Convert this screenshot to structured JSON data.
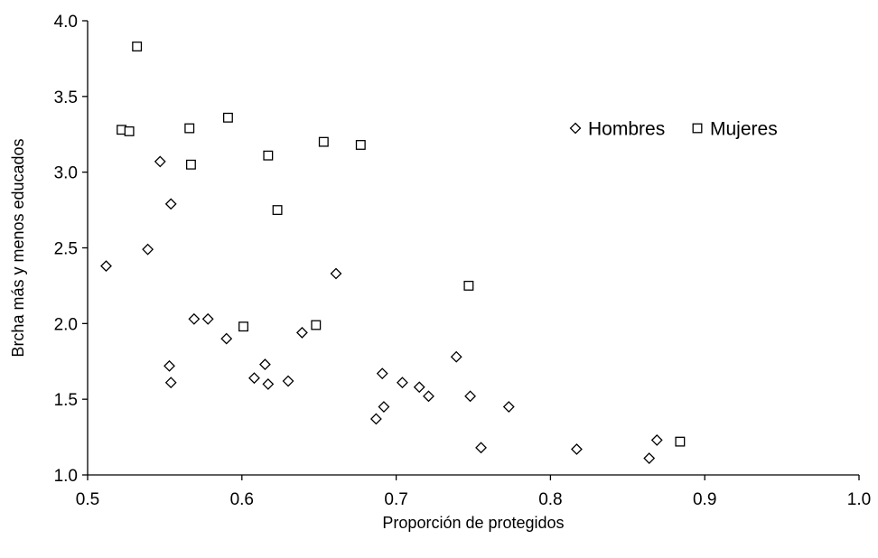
{
  "chart_data": {
    "type": "scatter",
    "title": "",
    "xlabel": "Proporción de protegidos",
    "ylabel": "Brcha más y menos educados",
    "xlim": [
      0.5,
      1.0
    ],
    "ylim": [
      1.0,
      4.0
    ],
    "x_ticks": [
      "0.5",
      "0.6",
      "0.7",
      "0.8",
      "0.9",
      "1.0"
    ],
    "y_ticks": [
      "1.0",
      "1.5",
      "2.0",
      "2.5",
      "3.0",
      "3.5",
      "4.0"
    ],
    "grid": false,
    "legend_position": "top-right",
    "series": [
      {
        "name": "Hombres",
        "marker": "diamond",
        "color": "#000000",
        "points": [
          {
            "x": 0.512,
            "y": 2.38
          },
          {
            "x": 0.539,
            "y": 2.49
          },
          {
            "x": 0.547,
            "y": 3.07
          },
          {
            "x": 0.553,
            "y": 1.72
          },
          {
            "x": 0.554,
            "y": 1.61
          },
          {
            "x": 0.554,
            "y": 2.79
          },
          {
            "x": 0.569,
            "y": 2.03
          },
          {
            "x": 0.578,
            "y": 2.03
          },
          {
            "x": 0.59,
            "y": 1.9
          },
          {
            "x": 0.608,
            "y": 1.64
          },
          {
            "x": 0.615,
            "y": 1.73
          },
          {
            "x": 0.617,
            "y": 1.6
          },
          {
            "x": 0.63,
            "y": 1.62
          },
          {
            "x": 0.639,
            "y": 1.94
          },
          {
            "x": 0.661,
            "y": 2.33
          },
          {
            "x": 0.687,
            "y": 1.37
          },
          {
            "x": 0.691,
            "y": 1.67
          },
          {
            "x": 0.692,
            "y": 1.45
          },
          {
            "x": 0.704,
            "y": 1.61
          },
          {
            "x": 0.715,
            "y": 1.58
          },
          {
            "x": 0.721,
            "y": 1.52
          },
          {
            "x": 0.739,
            "y": 1.78
          },
          {
            "x": 0.748,
            "y": 1.52
          },
          {
            "x": 0.755,
            "y": 1.18
          },
          {
            "x": 0.773,
            "y": 1.45
          },
          {
            "x": 0.817,
            "y": 1.17
          },
          {
            "x": 0.864,
            "y": 1.11
          },
          {
            "x": 0.869,
            "y": 1.23
          }
        ]
      },
      {
        "name": "Mujeres",
        "marker": "square",
        "color": "#000000",
        "points": [
          {
            "x": 0.522,
            "y": 3.28
          },
          {
            "x": 0.527,
            "y": 3.27
          },
          {
            "x": 0.532,
            "y": 3.83
          },
          {
            "x": 0.566,
            "y": 3.29
          },
          {
            "x": 0.567,
            "y": 3.05
          },
          {
            "x": 0.591,
            "y": 3.36
          },
          {
            "x": 0.601,
            "y": 1.98
          },
          {
            "x": 0.617,
            "y": 3.11
          },
          {
            "x": 0.623,
            "y": 2.75
          },
          {
            "x": 0.648,
            "y": 1.99
          },
          {
            "x": 0.653,
            "y": 3.2
          },
          {
            "x": 0.677,
            "y": 3.18
          },
          {
            "x": 0.747,
            "y": 2.25
          },
          {
            "x": 0.884,
            "y": 1.22
          }
        ]
      }
    ]
  }
}
